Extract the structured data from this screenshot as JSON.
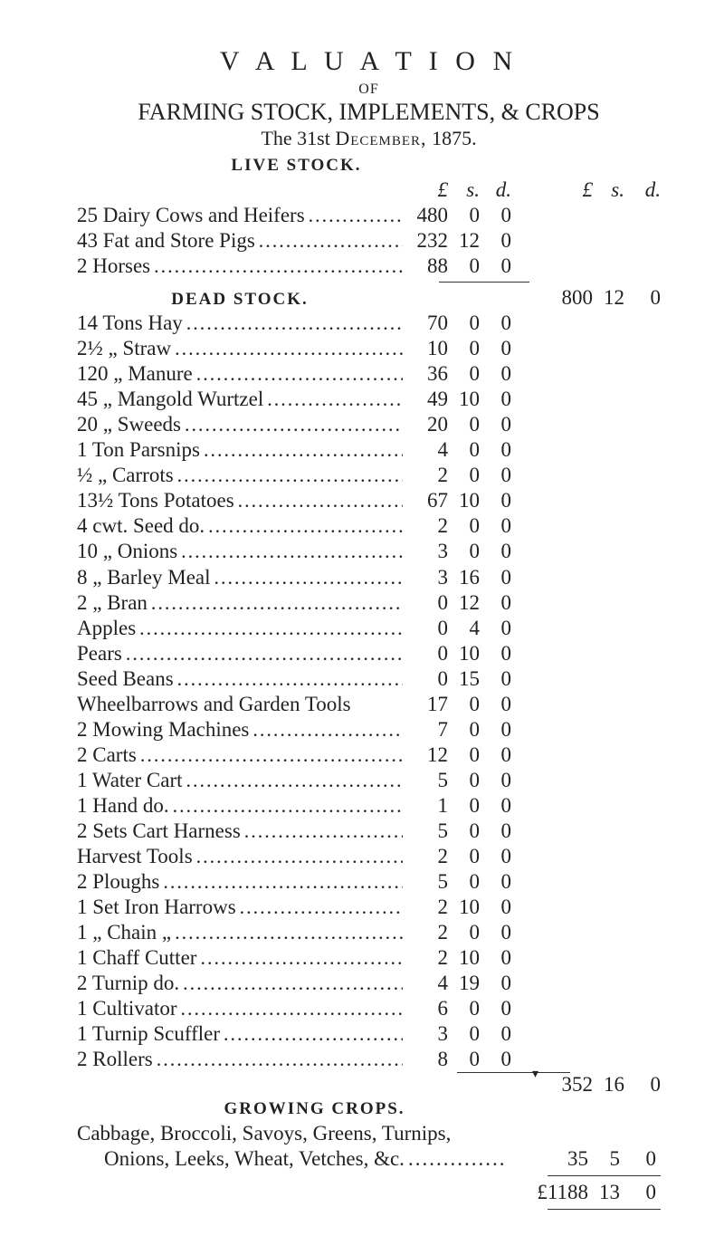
{
  "page": {
    "background_color": "#ffffff",
    "text_color": "#222222",
    "font_family": "Times New Roman",
    "body_fontsize_pt": 17
  },
  "headings": {
    "title_spaced": "V A L U A T I O N",
    "of": "OF",
    "line2": "FARMING STOCK, IMPLEMENTS, & CROPS",
    "date_pre": "The 31st ",
    "date_sc": "December,",
    "date_year": " 1875.",
    "live_stock": "LIVE STOCK.",
    "dead_stock": "DEAD STOCK.",
    "growing_crops": "GROWING CROPS."
  },
  "col_headers": {
    "pounds": "£",
    "shillings": "s.",
    "pence": "d.",
    "pounds2": "£",
    "shillings2": "s.",
    "pence2": "d."
  },
  "live_stock_items": [
    {
      "label": "25 Dairy Cows and Heifers",
      "tail": "...",
      "pounds": "480",
      "s": "0",
      "d": "0"
    },
    {
      "label": "43 Fat and Store Pigs",
      "tail": "",
      "pounds": "232",
      "s": "12",
      "d": "0"
    },
    {
      "label": "2 Horses",
      "tail": "",
      "pounds": "88",
      "s": "0",
      "d": "0"
    }
  ],
  "live_stock_subtotal": {
    "pounds": "800",
    "s": "12",
    "d": "0"
  },
  "dead_stock_items": [
    {
      "label": "14 Tons Hay",
      "pounds": "70",
      "s": "0",
      "d": "0"
    },
    {
      "label": "2½ „ Straw",
      "pounds": "10",
      "s": "0",
      "d": "0"
    },
    {
      "label": "120 „ Manure",
      "pounds": "36",
      "s": "0",
      "d": "0"
    },
    {
      "label": "45 „ Mangold Wurtzel",
      "pounds": "49",
      "s": "10",
      "d": "0"
    },
    {
      "label": "20 „ Sweeds",
      "pounds": "20",
      "s": "0",
      "d": "0"
    },
    {
      "label": "1 Ton Parsnips",
      "pounds": "4",
      "s": "0",
      "d": "0"
    },
    {
      "label": "½ „ Carrots",
      "pounds": "2",
      "s": "0",
      "d": "0"
    },
    {
      "label": "13½ Tons Potatoes",
      "pounds": "67",
      "s": "10",
      "d": "0"
    },
    {
      "label": "4 cwt. Seed do.",
      "pounds": "2",
      "s": "0",
      "d": "0"
    },
    {
      "label": "10 „ Onions",
      "pounds": "3",
      "s": "0",
      "d": "0"
    },
    {
      "label": "8 „ Barley Meal",
      "pounds": "3",
      "s": "16",
      "d": "0"
    },
    {
      "label": "2 „ Bran",
      "pounds": "0",
      "s": "12",
      "d": "0"
    },
    {
      "label": "Apples",
      "pounds": "0",
      "s": "4",
      "d": "0"
    },
    {
      "label": "Pears",
      "pounds": "0",
      "s": "10",
      "d": "0"
    },
    {
      "label": "Seed Beans",
      "pounds": "0",
      "s": "15",
      "d": "0"
    },
    {
      "label": "Wheelbarrows and Garden Tools",
      "nodots": true,
      "pounds": "17",
      "s": "0",
      "d": "0"
    },
    {
      "label": "2 Mowing Machines",
      "pounds": "7",
      "s": "0",
      "d": "0"
    },
    {
      "label": "2 Carts",
      "pounds": "12",
      "s": "0",
      "d": "0"
    },
    {
      "label": "1 Water Cart",
      "pounds": "5",
      "s": "0",
      "d": "0"
    },
    {
      "label": "1 Hand do.",
      "pounds": "1",
      "s": "0",
      "d": "0"
    },
    {
      "label": "2 Sets Cart Harness",
      "pounds": "5",
      "s": "0",
      "d": "0"
    },
    {
      "label": "Harvest Tools",
      "pounds": "2",
      "s": "0",
      "d": "0"
    },
    {
      "label": "2 Ploughs",
      "pounds": "5",
      "s": "0",
      "d": "0"
    },
    {
      "label": "1 Set Iron Harrows",
      "pounds": "2",
      "s": "10",
      "d": "0"
    },
    {
      "label": "1 „ Chain     „",
      "pounds": "2",
      "s": "0",
      "d": "0"
    },
    {
      "label": "1 Chaff Cutter",
      "pounds": "2",
      "s": "10",
      "d": "0"
    },
    {
      "label": "2 Turnip do.",
      "pounds": "4",
      "s": "19",
      "d": "0"
    },
    {
      "label": "1 Cultivator",
      "pounds": "6",
      "s": "0",
      "d": "0"
    },
    {
      "label": "1 Turnip Scuffler",
      "pounds": "3",
      "s": "0",
      "d": "0"
    },
    {
      "label": "2 Rollers",
      "pounds": "8",
      "s": "0",
      "d": "0"
    }
  ],
  "dead_stock_subtotal": {
    "pounds": "352",
    "s": "16",
    "d": "0"
  },
  "growing_crops": {
    "line1": "Cabbage, Broccoli, Savoys, Greens, Turnips,",
    "line2_label": "Onions, Leeks, Wheat, Vetches, &c.",
    "pounds": "35",
    "s": "5",
    "d": "0"
  },
  "grand_total": {
    "label": "£1188",
    "s": "13",
    "d": "0"
  },
  "dots_fill": "........................................................................"
}
